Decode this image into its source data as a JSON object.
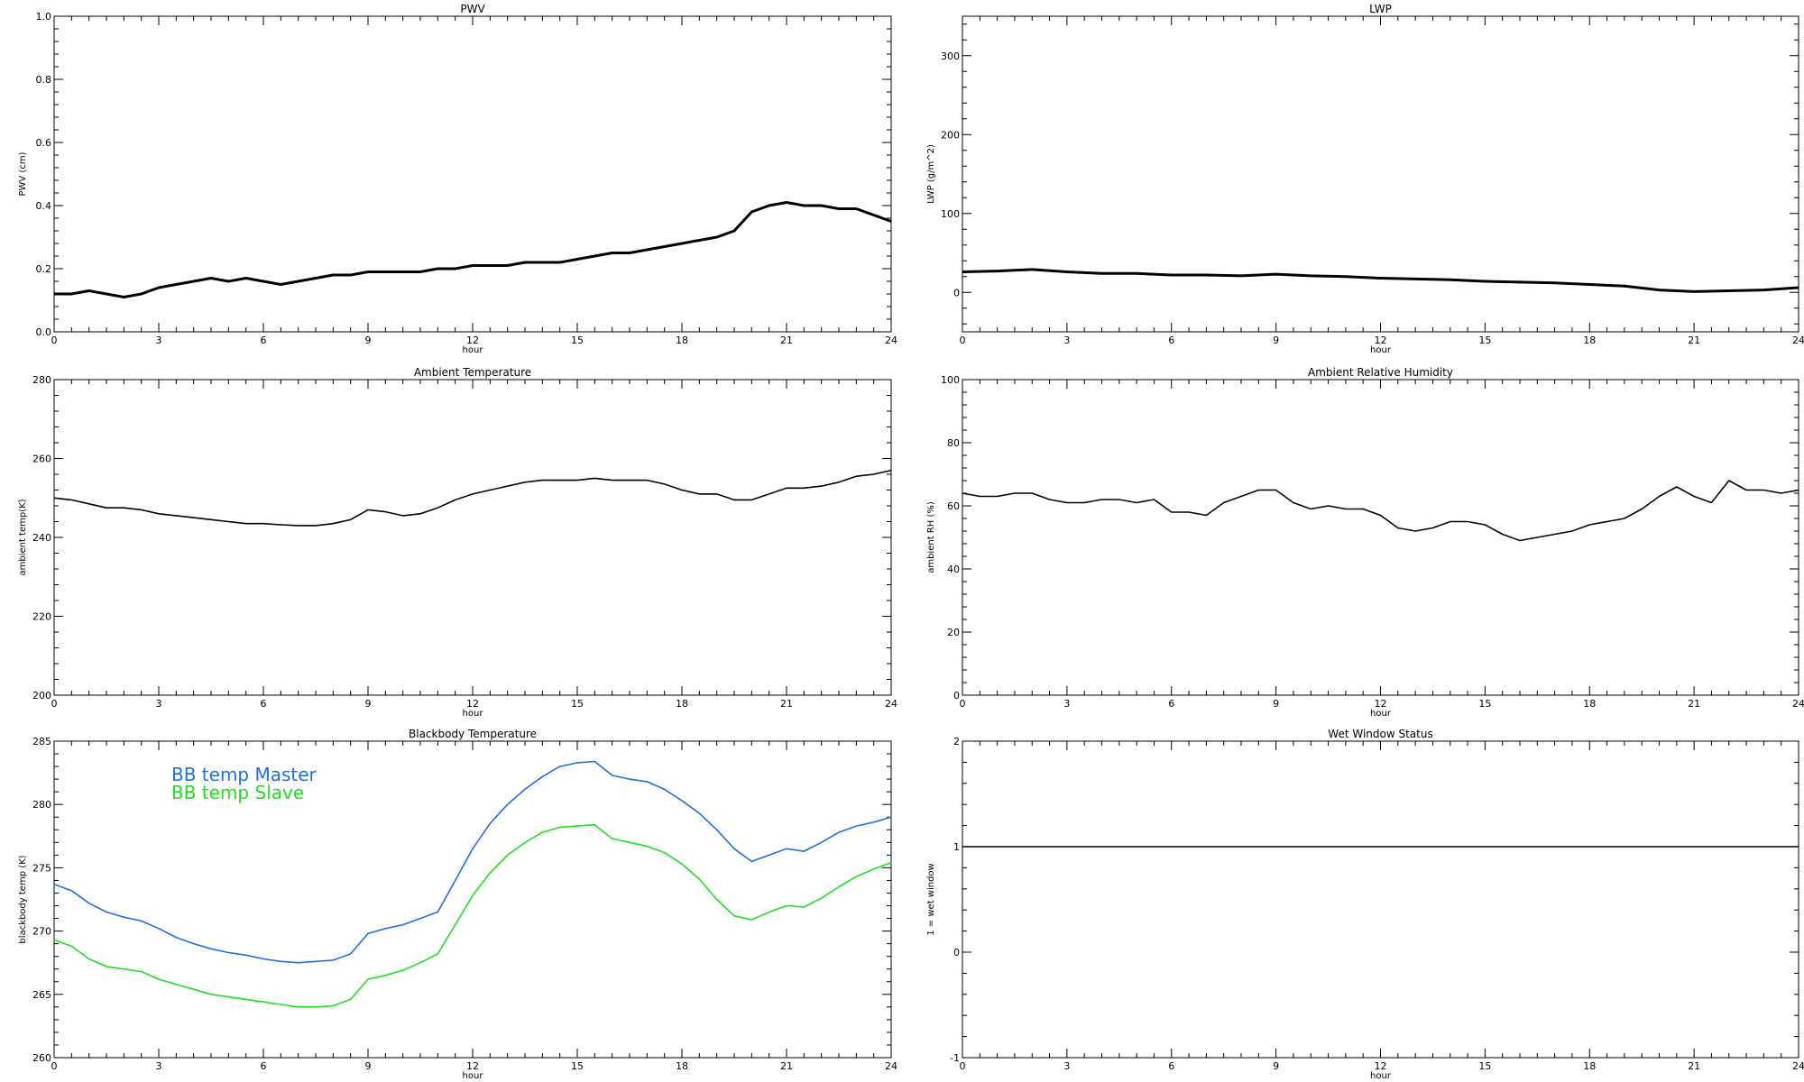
{
  "chart_data": [
    {
      "id": "pwv",
      "type": "line",
      "title": "PWV",
      "xlabel": "hour",
      "ylabel": "PWV (cm)",
      "xlim": [
        0,
        24
      ],
      "ylim": [
        0,
        1
      ],
      "xticks": [
        0,
        3,
        6,
        9,
        12,
        15,
        18,
        21,
        24
      ],
      "xtick_labels": [
        "0",
        "3",
        "6",
        "9",
        "12",
        "15",
        "18",
        "21",
        "24"
      ],
      "yticks": [
        0,
        0.2,
        0.4,
        0.6,
        0.8,
        1.0
      ],
      "ytick_labels": [
        "0.0",
        "0.2",
        "0.4",
        "0.6",
        "0.8",
        "1.0"
      ],
      "series": [
        {
          "color": "#000000",
          "x": [
            0,
            0.5,
            1,
            1.5,
            2,
            2.5,
            3,
            3.5,
            4,
            4.5,
            5,
            5.5,
            6,
            6.5,
            7,
            7.5,
            8,
            8.5,
            9,
            9.5,
            10,
            10.5,
            11,
            11.5,
            12,
            12.5,
            13,
            13.5,
            14,
            14.5,
            15,
            15.5,
            16,
            16.5,
            17,
            17.5,
            18,
            18.5,
            19,
            19.5,
            20,
            20.5,
            21,
            21.5,
            22,
            22.5,
            23,
            23.5,
            24
          ],
          "y": [
            0.12,
            0.12,
            0.13,
            0.12,
            0.11,
            0.12,
            0.14,
            0.15,
            0.16,
            0.17,
            0.16,
            0.17,
            0.16,
            0.15,
            0.16,
            0.17,
            0.18,
            0.18,
            0.19,
            0.19,
            0.19,
            0.19,
            0.2,
            0.2,
            0.21,
            0.21,
            0.21,
            0.22,
            0.22,
            0.22,
            0.23,
            0.24,
            0.25,
            0.25,
            0.26,
            0.27,
            0.28,
            0.29,
            0.3,
            0.32,
            0.38,
            0.4,
            0.41,
            0.4,
            0.4,
            0.39,
            0.39,
            0.37,
            0.35
          ]
        }
      ]
    },
    {
      "id": "lwp",
      "type": "line",
      "title": "LWP",
      "xlabel": "hour",
      "ylabel": "LWP (g/m^2)",
      "xlim": [
        0,
        24
      ],
      "ylim": [
        -50,
        350
      ],
      "xticks": [
        0,
        3,
        6,
        9,
        12,
        15,
        18,
        21,
        24
      ],
      "xtick_labels": [
        "0",
        "3",
        "6",
        "9",
        "12",
        "15",
        "18",
        "21",
        "24"
      ],
      "yticks": [
        0,
        100,
        200,
        300
      ],
      "ytick_labels": [
        "0",
        "100",
        "200",
        "300"
      ],
      "series": [
        {
          "color": "#000000",
          "x": [
            0,
            1,
            2,
            3,
            4,
            5,
            6,
            7,
            8,
            9,
            10,
            11,
            12,
            13,
            14,
            15,
            16,
            17,
            18,
            19,
            20,
            21,
            22,
            23,
            24
          ],
          "y": [
            26,
            27,
            29,
            26,
            24,
            24,
            22,
            22,
            21,
            23,
            21,
            20,
            18,
            17,
            16,
            14,
            13,
            12,
            10,
            8,
            3,
            1,
            2,
            3,
            6
          ]
        }
      ]
    },
    {
      "id": "ambient-temp",
      "type": "line",
      "title": "Ambient Temperature",
      "xlabel": "hour",
      "ylabel": "ambient temp(K)",
      "xlim": [
        0,
        24
      ],
      "ylim": [
        200,
        280
      ],
      "xticks": [
        0,
        3,
        6,
        9,
        12,
        15,
        18,
        21,
        24
      ],
      "xtick_labels": [
        "0",
        "3",
        "6",
        "9",
        "12",
        "15",
        "18",
        "21",
        "24"
      ],
      "yticks": [
        200,
        220,
        240,
        260,
        280
      ],
      "ytick_labels": [
        "200",
        "220",
        "240",
        "260",
        "280"
      ],
      "series": [
        {
          "color": "#000000",
          "x": [
            0,
            0.5,
            1,
            1.5,
            2,
            2.5,
            3,
            3.5,
            4,
            4.5,
            5,
            5.5,
            6,
            6.5,
            7,
            7.5,
            8,
            8.5,
            9,
            9.5,
            10,
            10.5,
            11,
            11.5,
            12,
            12.5,
            13,
            13.5,
            14,
            14.5,
            15,
            15.5,
            16,
            16.5,
            17,
            17.5,
            18,
            18.5,
            19,
            19.5,
            20,
            20.5,
            21,
            21.5,
            22,
            22.5,
            23,
            23.5,
            24
          ],
          "y": [
            250,
            249.5,
            248.5,
            247.5,
            247.5,
            247,
            246,
            245.5,
            245,
            244.5,
            244,
            243.5,
            243.5,
            243.2,
            243,
            243,
            243.5,
            244.5,
            247,
            246.5,
            245.5,
            246,
            247.5,
            249.5,
            251,
            252,
            253,
            254,
            254.5,
            254.5,
            254.5,
            255,
            254.5,
            254.5,
            254.5,
            253.5,
            252,
            251,
            251,
            249.5,
            249.5,
            251,
            252.5,
            252.5,
            253,
            254,
            255.5,
            256,
            257
          ]
        }
      ]
    },
    {
      "id": "ambient-rh",
      "type": "line",
      "title": "Ambient Relative Humidity",
      "xlabel": "hour",
      "ylabel": "ambient RH (%)",
      "xlim": [
        0,
        24
      ],
      "ylim": [
        0,
        100
      ],
      "xticks": [
        0,
        3,
        6,
        9,
        12,
        15,
        18,
        21,
        24
      ],
      "xtick_labels": [
        "0",
        "3",
        "6",
        "9",
        "12",
        "15",
        "18",
        "21",
        "24"
      ],
      "yticks": [
        0,
        20,
        40,
        60,
        80,
        100
      ],
      "ytick_labels": [
        "0",
        "20",
        "40",
        "60",
        "80",
        "100"
      ],
      "series": [
        {
          "color": "#000000",
          "x": [
            0,
            0.5,
            1,
            1.5,
            2,
            2.5,
            3,
            3.5,
            4,
            4.5,
            5,
            5.5,
            6,
            6.5,
            7,
            7.5,
            8,
            8.5,
            9,
            9.5,
            10,
            10.5,
            11,
            11.5,
            12,
            12.5,
            13,
            13.5,
            14,
            14.5,
            15,
            15.5,
            16,
            16.5,
            17,
            17.5,
            18,
            18.5,
            19,
            19.5,
            20,
            20.5,
            21,
            21.5,
            22,
            22.5,
            23,
            23.5,
            24
          ],
          "y": [
            64,
            63,
            63,
            64,
            64,
            62,
            61,
            61,
            62,
            62,
            61,
            62,
            58,
            58,
            57,
            61,
            63,
            65,
            65,
            61,
            59,
            60,
            59,
            59,
            57,
            53,
            52,
            53,
            55,
            55,
            54,
            51,
            49,
            50,
            51,
            52,
            54,
            55,
            56,
            59,
            63,
            66,
            63,
            61,
            68,
            65,
            65,
            64,
            65
          ]
        }
      ]
    },
    {
      "id": "blackbody-temp",
      "type": "line",
      "title": "Blackbody Temperature",
      "xlabel": "hour",
      "ylabel": "blackbody temp (K)",
      "xlim": [
        0,
        24
      ],
      "ylim": [
        260,
        285
      ],
      "xticks": [
        0,
        3,
        6,
        9,
        12,
        15,
        18,
        21,
        24
      ],
      "xtick_labels": [
        "0",
        "3",
        "6",
        "9",
        "12",
        "15",
        "18",
        "21",
        "24"
      ],
      "yticks": [
        260,
        265,
        270,
        275,
        280,
        285
      ],
      "ytick_labels": [
        "260",
        "265",
        "270",
        "275",
        "280",
        "285"
      ],
      "legend": [
        "BB temp Master",
        "BB temp Slave"
      ],
      "series": [
        {
          "color": "#1f6fe0",
          "x": [
            0,
            0.5,
            1,
            1.5,
            2,
            2.5,
            3,
            3.5,
            4,
            4.5,
            5,
            5.5,
            6,
            6.5,
            7,
            7.5,
            8,
            8.5,
            9,
            9.5,
            10,
            10.5,
            11,
            11.5,
            12,
            12.5,
            13,
            13.5,
            14,
            14.5,
            15,
            15.5,
            16,
            16.5,
            17,
            17.5,
            18,
            18.5,
            19,
            19.5,
            20,
            20.5,
            21,
            21.5,
            22,
            22.5,
            23,
            23.5,
            24
          ],
          "y": [
            273.7,
            273.2,
            272.2,
            271.5,
            271.1,
            270.8,
            270.2,
            269.5,
            269.0,
            268.6,
            268.3,
            268.1,
            267.8,
            267.6,
            267.5,
            267.6,
            267.7,
            268.2,
            269.8,
            270.2,
            270.5,
            271.0,
            271.5,
            274.0,
            276.5,
            278.5,
            280.0,
            281.2,
            282.2,
            283.0,
            283.3,
            283.4,
            282.3,
            282.0,
            281.8,
            281.2,
            280.3,
            279.3,
            278.0,
            276.5,
            275.5,
            276.0,
            276.5,
            276.3,
            277.0,
            277.8,
            278.3,
            278.6,
            279.0
          ]
        },
        {
          "color": "#22dd22",
          "x": [
            0,
            0.5,
            1,
            1.5,
            2,
            2.5,
            3,
            3.5,
            4,
            4.5,
            5,
            5.5,
            6,
            6.5,
            7,
            7.5,
            8,
            8.5,
            9,
            9.5,
            10,
            10.5,
            11,
            11.5,
            12,
            12.5,
            13,
            13.5,
            14,
            14.5,
            15,
            15.5,
            16,
            16.5,
            17,
            17.5,
            18,
            18.5,
            19,
            19.5,
            20,
            20.5,
            21,
            21.5,
            22,
            22.5,
            23,
            23.5,
            24
          ],
          "y": [
            269.3,
            268.8,
            267.8,
            267.2,
            267.0,
            266.8,
            266.2,
            265.8,
            265.4,
            265.0,
            264.8,
            264.6,
            264.4,
            264.2,
            264.0,
            264.0,
            264.1,
            264.6,
            266.2,
            266.5,
            266.9,
            267.5,
            268.2,
            270.5,
            272.8,
            274.6,
            276.0,
            277.0,
            277.8,
            278.2,
            278.3,
            278.4,
            277.3,
            277.0,
            276.7,
            276.2,
            275.3,
            274.1,
            272.5,
            271.2,
            270.9,
            271.5,
            272.0,
            271.9,
            272.6,
            273.5,
            274.3,
            274.9,
            275.4
          ]
        }
      ]
    },
    {
      "id": "wet-window",
      "type": "line",
      "title": "Wet Window Status",
      "xlabel": "hour",
      "ylabel": "1 = wet window",
      "xlim": [
        0,
        24
      ],
      "ylim": [
        -1,
        2
      ],
      "xticks": [
        0,
        3,
        6,
        9,
        12,
        15,
        18,
        21,
        24
      ],
      "xtick_labels": [
        "0",
        "3",
        "6",
        "9",
        "12",
        "15",
        "18",
        "21",
        "24"
      ],
      "yticks": [
        -1,
        0,
        1,
        2
      ],
      "ytick_labels": [
        "-1",
        "0",
        "1",
        "2"
      ],
      "series": [
        {
          "color": "#000000",
          "x": [
            0,
            24
          ],
          "y": [
            1,
            1
          ]
        }
      ]
    }
  ]
}
